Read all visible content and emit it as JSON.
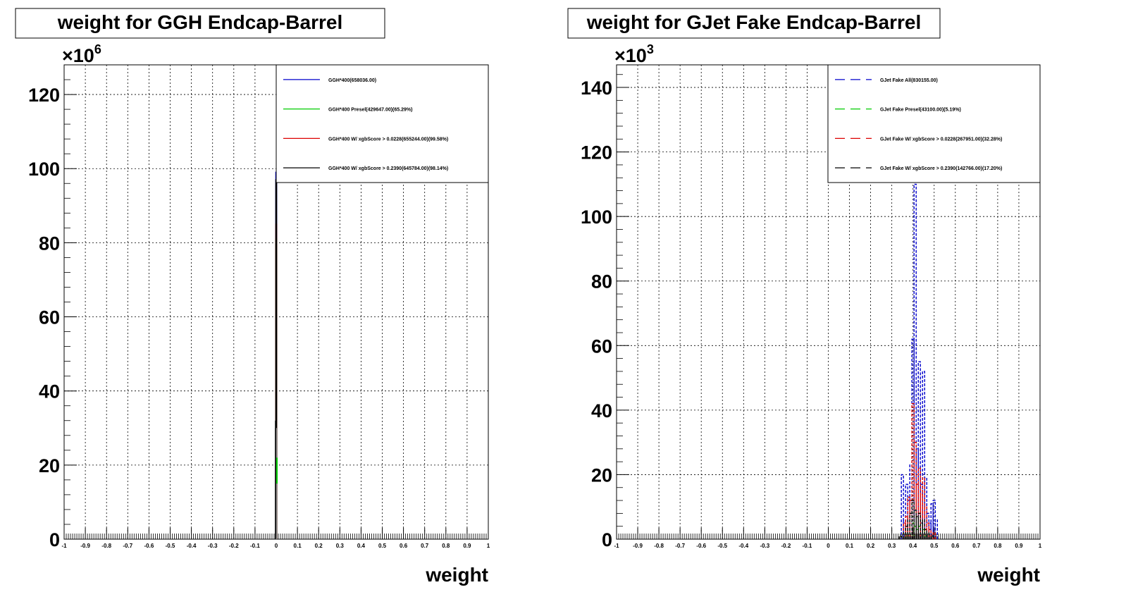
{
  "chart_data": [
    {
      "type": "histogram",
      "title": "weight for GGH Endcap-Barrel",
      "xlabel": "weight",
      "ylabel": "",
      "y_multiplier": "×10",
      "y_exponent": "6",
      "xlim": [
        -1,
        1
      ],
      "ylim": [
        0,
        128
      ],
      "grid": true,
      "legend_position": "top-right",
      "x_ticks": [
        "-1",
        "-0.9",
        "-0.8",
        "-0.7",
        "-0.6",
        "-0.5",
        "-0.4",
        "-0.3",
        "-0.2",
        "-0.1",
        "0",
        "0.1",
        "0.2",
        "0.3",
        "0.4",
        "0.5",
        "0.6",
        "0.7",
        "0.8",
        "0.9",
        "1"
      ],
      "y_ticks": [
        "0",
        "20",
        "40",
        "60",
        "80",
        "100",
        "120"
      ],
      "series": [
        {
          "name": "GGH*400(658036.00)",
          "color": "#0000cc",
          "dash": "solid",
          "bins": [
            {
              "x": 0.0,
              "y": 99
            }
          ]
        },
        {
          "name": "GGH*400 Presel(429647.00)(65.29%)",
          "color": "#00cc00",
          "dash": "solid",
          "bins": [
            {
              "x": 0.0,
              "y": 81
            }
          ]
        },
        {
          "name": "GGH*400 W/ xgbScore > 0.0228(655244.00)(99.58%)",
          "color": "#dd0000",
          "dash": "solid",
          "bins": [
            {
              "x": 0.0,
              "y": 85
            }
          ]
        },
        {
          "name": "GGH*400 W/ xgbScore > 0.2390(645784.00)(98.14%)",
          "color": "#000000",
          "dash": "solid",
          "bins": [
            {
              "x": 0.0,
              "y": 97
            }
          ]
        }
      ]
    },
    {
      "type": "histogram",
      "title": "weight for GJet Fake Endcap-Barrel",
      "xlabel": "weight",
      "ylabel": "",
      "y_multiplier": "×10",
      "y_exponent": "3",
      "xlim": [
        -1,
        1
      ],
      "ylim": [
        0,
        147
      ],
      "grid": true,
      "legend_position": "top-right",
      "x_ticks": [
        "-1",
        "-0.9",
        "-0.8",
        "-0.7",
        "-0.6",
        "-0.5",
        "-0.4",
        "-0.3",
        "-0.2",
        "-0.1",
        "0",
        "0.1",
        "0.2",
        "0.3",
        "0.4",
        "0.5",
        "0.6",
        "0.7",
        "0.8",
        "0.9",
        "1"
      ],
      "y_ticks": [
        "0",
        "20",
        "40",
        "60",
        "80",
        "100",
        "120",
        "140"
      ],
      "series": [
        {
          "name": "GJet Fake All(830155.00)",
          "color": "#0000cc",
          "dash": "dashed",
          "bins": [
            {
              "x": 0.35,
              "y": 20
            },
            {
              "x": 0.36,
              "y": 6
            },
            {
              "x": 0.37,
              "y": 17
            },
            {
              "x": 0.38,
              "y": 12
            },
            {
              "x": 0.39,
              "y": 23
            },
            {
              "x": 0.4,
              "y": 62
            },
            {
              "x": 0.41,
              "y": 110
            },
            {
              "x": 0.42,
              "y": 28
            },
            {
              "x": 0.43,
              "y": 55
            },
            {
              "x": 0.44,
              "y": 17
            },
            {
              "x": 0.45,
              "y": 52
            },
            {
              "x": 0.46,
              "y": 19
            },
            {
              "x": 0.47,
              "y": 8
            },
            {
              "x": 0.48,
              "y": 5
            },
            {
              "x": 0.49,
              "y": 11
            },
            {
              "x": 0.5,
              "y": 12
            },
            {
              "x": 0.51,
              "y": 6
            }
          ]
        },
        {
          "name": "GJet Fake Presel(43100.00)(5.19%)",
          "color": "#00cc00",
          "dash": "dashed",
          "bins": [
            {
              "x": 0.37,
              "y": 1
            },
            {
              "x": 0.39,
              "y": 2
            },
            {
              "x": 0.4,
              "y": 5
            },
            {
              "x": 0.41,
              "y": 4
            },
            {
              "x": 0.42,
              "y": 3
            },
            {
              "x": 0.43,
              "y": 4
            },
            {
              "x": 0.44,
              "y": 2
            },
            {
              "x": 0.45,
              "y": 3
            },
            {
              "x": 0.46,
              "y": 1
            }
          ]
        },
        {
          "name": "GJet Fake W/ xgbScore > 0.0228(267951.00)(32.28%)",
          "color": "#dd0000",
          "dash": "dashed",
          "bins": [
            {
              "x": 0.36,
              "y": 5
            },
            {
              "x": 0.37,
              "y": 7
            },
            {
              "x": 0.38,
              "y": 13
            },
            {
              "x": 0.39,
              "y": 12
            },
            {
              "x": 0.4,
              "y": 42
            },
            {
              "x": 0.41,
              "y": 30
            },
            {
              "x": 0.42,
              "y": 17
            },
            {
              "x": 0.43,
              "y": 22
            },
            {
              "x": 0.44,
              "y": 14
            },
            {
              "x": 0.45,
              "y": 19
            },
            {
              "x": 0.46,
              "y": 10
            },
            {
              "x": 0.47,
              "y": 5
            },
            {
              "x": 0.48,
              "y": 3
            },
            {
              "x": 0.5,
              "y": 2
            }
          ]
        },
        {
          "name": "GJet Fake W/ xgbScore > 0.2390(142766.00)(17.20%)",
          "color": "#000000",
          "dash": "dashed",
          "bins": [
            {
              "x": 0.34,
              "y": 1
            },
            {
              "x": 0.36,
              "y": 2
            },
            {
              "x": 0.37,
              "y": 4
            },
            {
              "x": 0.38,
              "y": 6
            },
            {
              "x": 0.39,
              "y": 8
            },
            {
              "x": 0.4,
              "y": 12
            },
            {
              "x": 0.41,
              "y": 9
            },
            {
              "x": 0.42,
              "y": 7
            },
            {
              "x": 0.43,
              "y": 8
            },
            {
              "x": 0.44,
              "y": 5
            },
            {
              "x": 0.45,
              "y": 6
            },
            {
              "x": 0.46,
              "y": 3
            },
            {
              "x": 0.47,
              "y": 2
            },
            {
              "x": 0.49,
              "y": 1
            }
          ]
        }
      ]
    }
  ]
}
